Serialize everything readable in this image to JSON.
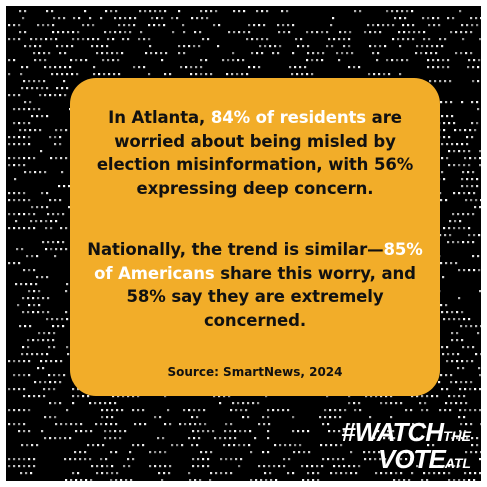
{
  "card": {
    "paragraph1": {
      "pre": "In Atlanta, ",
      "highlight": "84% of residents",
      "post": " are worried about being misled by election misinformation, with 56% expressing deep concern."
    },
    "paragraph2": {
      "pre": "Nationally, the trend is similar—",
      "highlight": "85% of Americans",
      "post": " share this worry, and 58% say they are extremely concerned."
    },
    "source": "Source: SmartNews, 2024"
  },
  "brand": {
    "line1_main": "#WATCH",
    "line1_small": "THE",
    "line2_main": "VOTE",
    "line2_small": "ATL"
  },
  "colors": {
    "background": "#000000",
    "card": "#f2ad29",
    "highlight": "#ffffff",
    "text": "#111111",
    "dots": "#ffffff"
  }
}
